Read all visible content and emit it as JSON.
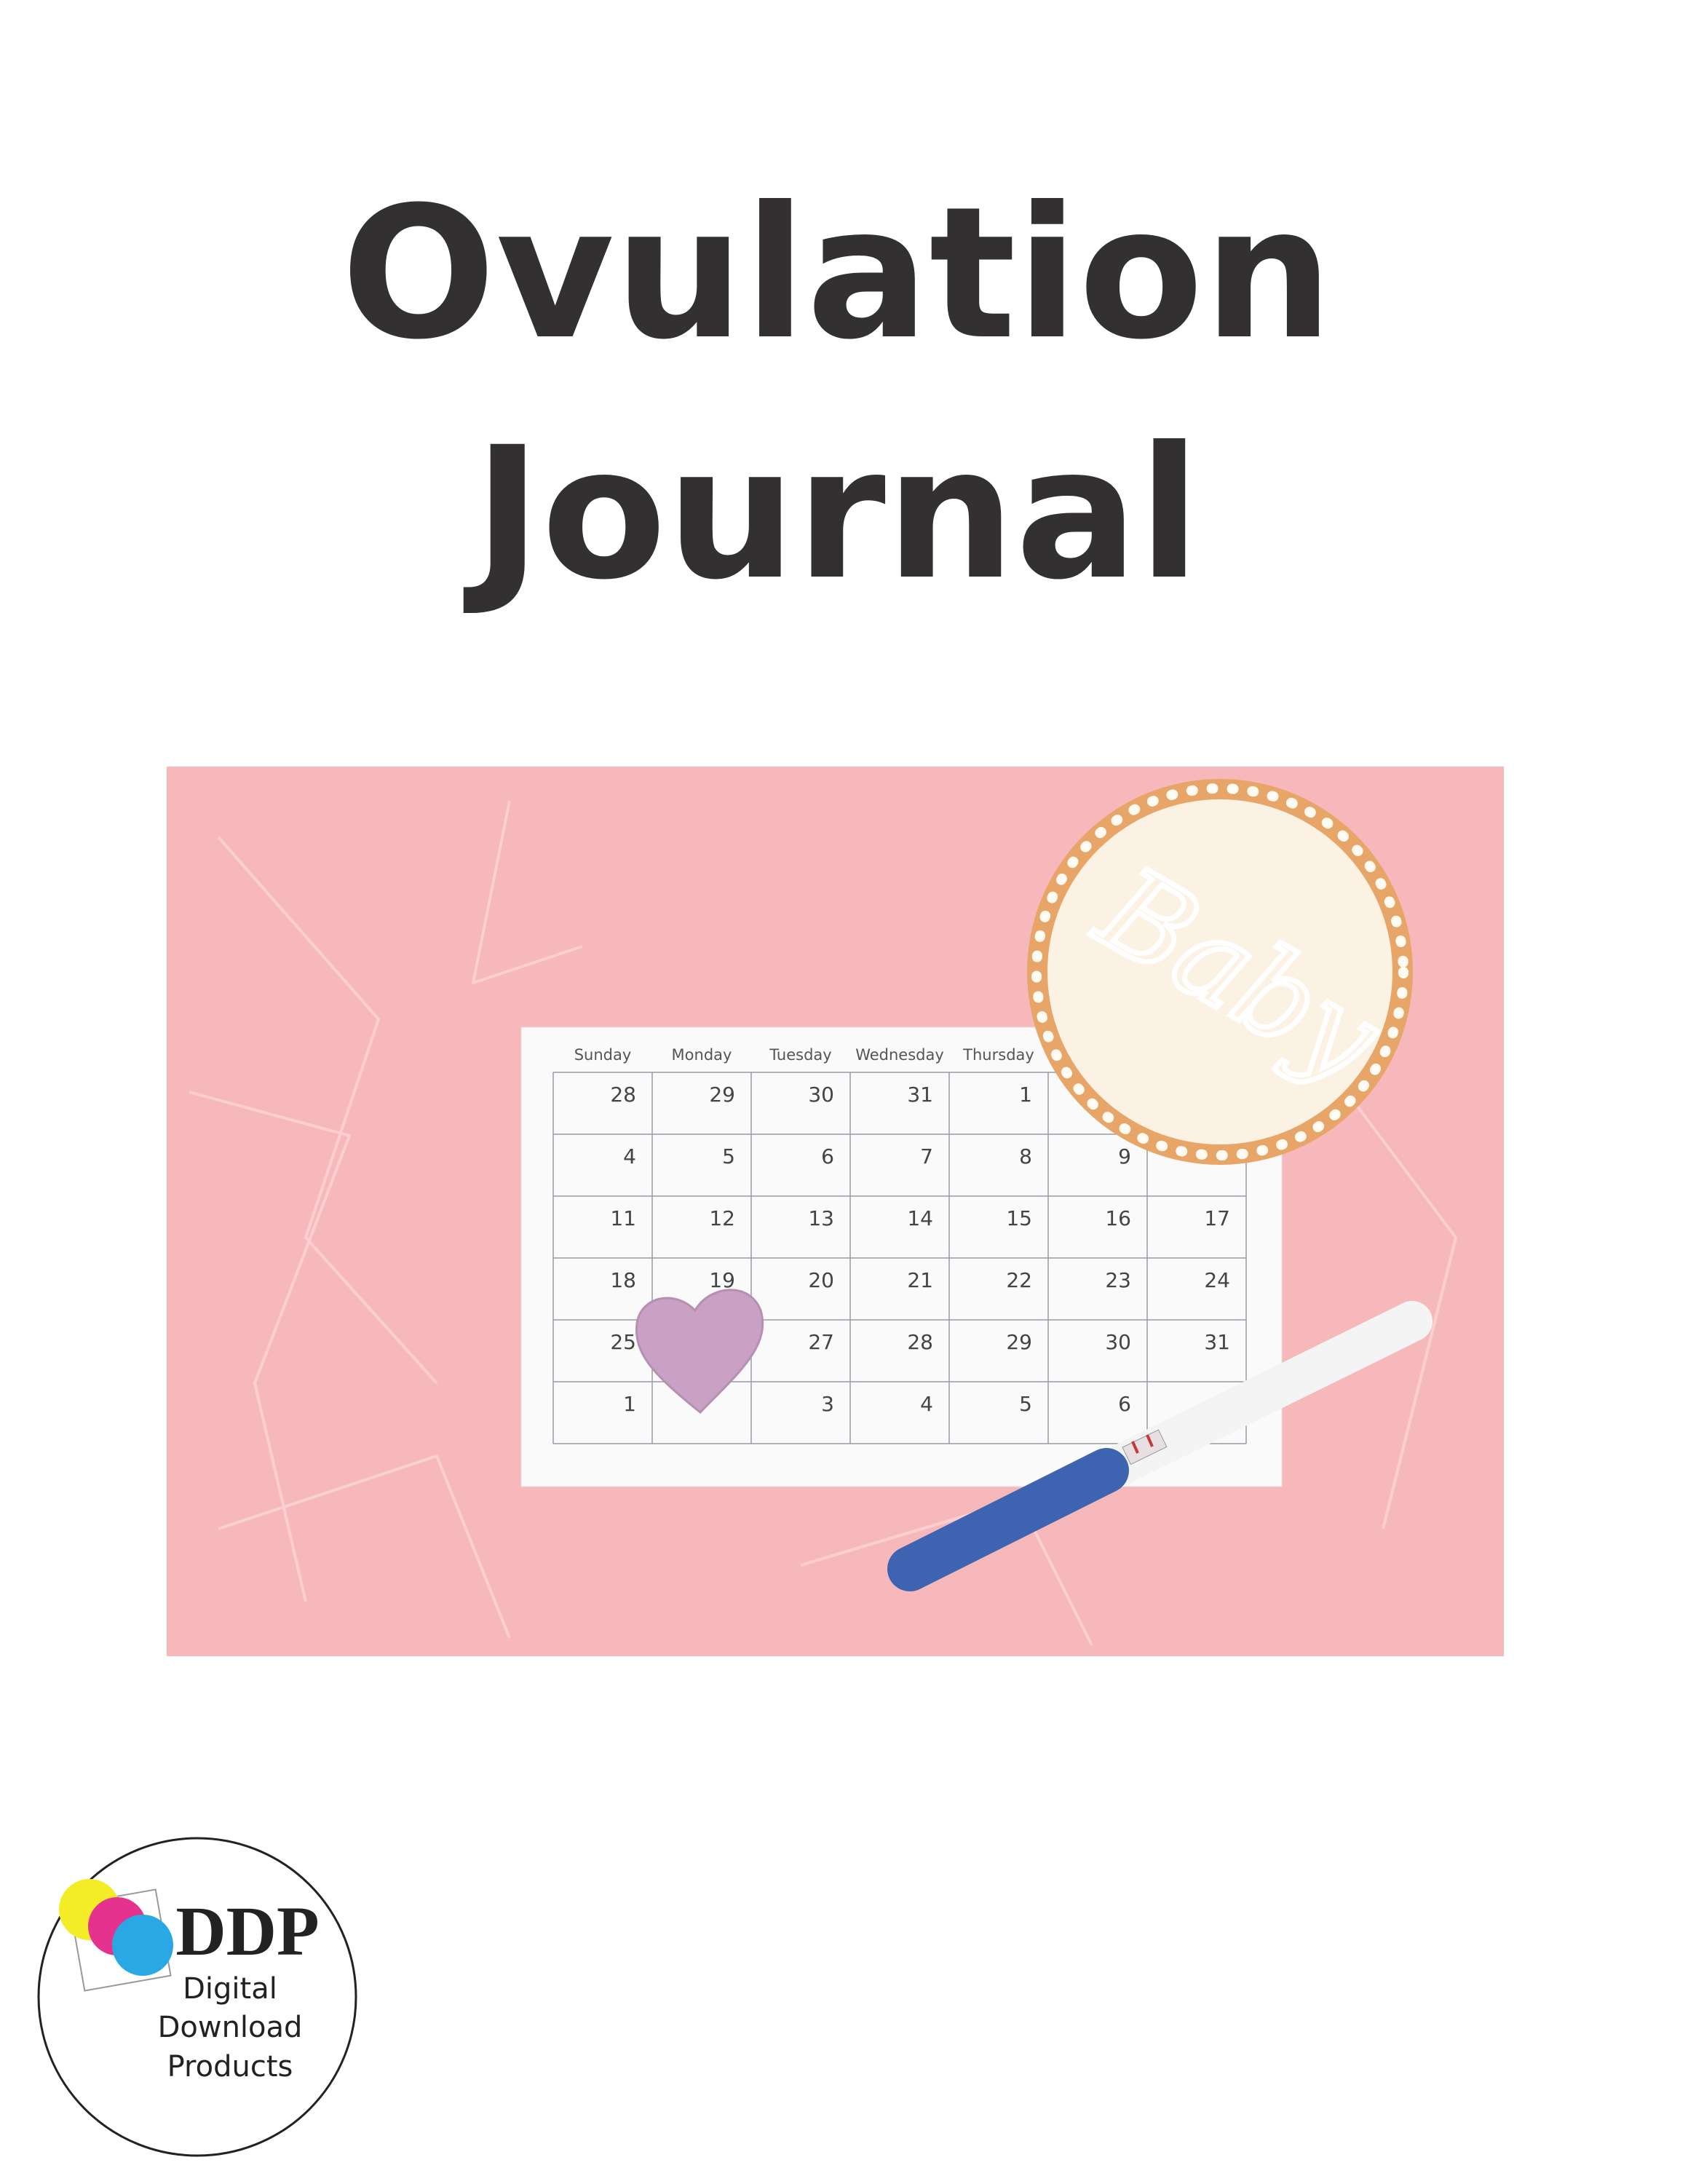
{
  "title": {
    "line1": "Ovulation",
    "line2": "Journal"
  },
  "photo": {
    "calendar": {
      "headers": [
        "Sunday",
        "Monday",
        "Tuesday",
        "Wednesday",
        "Thursday",
        null,
        null
      ],
      "rows": [
        [
          "28",
          "29",
          "30",
          "31",
          "1",
          null,
          null
        ],
        [
          "4",
          "5",
          "6",
          "7",
          "8",
          "9",
          null
        ],
        [
          "11",
          "12",
          "13",
          "14",
          "15",
          "16",
          "17"
        ],
        [
          "18",
          "19",
          "20",
          "21",
          "22",
          "23",
          "24"
        ],
        [
          "25",
          null,
          "27",
          "28",
          "29",
          "30",
          "31"
        ],
        [
          "1",
          null,
          "3",
          "4",
          "5",
          "6",
          null
        ]
      ]
    },
    "cookie_text": "Baby"
  },
  "logo": {
    "mark": "DDP",
    "line1": "Digital",
    "line2": "Download",
    "line3": "Products"
  }
}
